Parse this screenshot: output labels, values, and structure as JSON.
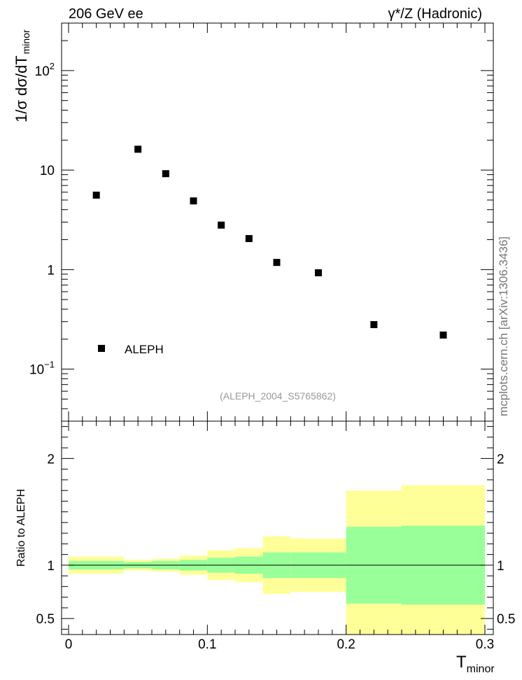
{
  "header": {
    "left": "206 GeV ee",
    "right": "γ*/Z (Hadronic)"
  },
  "side_label": "mcplots.cern.ch [arXiv:1306.3436]",
  "watermark": "(ALEPH_2004_S5765862)",
  "main_ylabel": {
    "prefix": "1/σ  dσ/dT",
    "sub": "minor"
  },
  "ratio_ylabel": "Ratio to ALEPH",
  "xlabel": {
    "main": "T",
    "sub": "minor"
  },
  "legend": {
    "label": "ALEPH"
  },
  "colors": {
    "band_outer": "#ffff99",
    "band_inner": "#99ff99",
    "marker": "#000000"
  },
  "main_yticks": [
    {
      "value": 0.1,
      "base": "10",
      "exp": "−1"
    },
    {
      "value": 1,
      "base": "1",
      "exp": ""
    },
    {
      "value": 10,
      "base": "10",
      "exp": ""
    },
    {
      "value": 100,
      "base": "10",
      "exp": "2"
    }
  ],
  "ratio_yticks": [
    "0.5",
    "1",
    "2"
  ],
  "xticks": [
    "0",
    "0.1",
    "0.2",
    "0.3"
  ],
  "chart_data": [
    {
      "type": "scatter",
      "title": "",
      "xlabel": "",
      "ylabel": "1/σ dσ/dT_minor",
      "yscale": "log",
      "xlim": [
        0,
        0.3
      ],
      "ylim": [
        0.03,
        300
      ],
      "series": [
        {
          "name": "ALEPH",
          "x": [
            0.02,
            0.05,
            0.07,
            0.09,
            0.11,
            0.13,
            0.15,
            0.18,
            0.22,
            0.27
          ],
          "y": [
            5.6,
            16.2,
            9.2,
            4.9,
            2.8,
            2.05,
            1.18,
            0.93,
            0.28,
            0.22
          ]
        }
      ]
    },
    {
      "type": "area",
      "title": "",
      "xlabel": "T_minor",
      "ylabel": "Ratio to ALEPH",
      "xlim": [
        0,
        0.3
      ],
      "ylim": [
        0.35,
        2.35
      ],
      "reference_line": 1,
      "bins": [
        {
          "lo": 0.0,
          "hi": 0.04,
          "inner": [
            0.96,
            1.04
          ],
          "outer": [
            0.92,
            1.08
          ]
        },
        {
          "lo": 0.04,
          "hi": 0.06,
          "inner": [
            0.97,
            1.03
          ],
          "outer": [
            0.95,
            1.05
          ]
        },
        {
          "lo": 0.06,
          "hi": 0.08,
          "inner": [
            0.96,
            1.04
          ],
          "outer": [
            0.94,
            1.06
          ]
        },
        {
          "lo": 0.08,
          "hi": 0.1,
          "inner": [
            0.95,
            1.05
          ],
          "outer": [
            0.91,
            1.09
          ]
        },
        {
          "lo": 0.1,
          "hi": 0.12,
          "inner": [
            0.93,
            1.07
          ],
          "outer": [
            0.86,
            1.14
          ]
        },
        {
          "lo": 0.12,
          "hi": 0.14,
          "inner": [
            0.92,
            1.08
          ],
          "outer": [
            0.84,
            1.16
          ]
        },
        {
          "lo": 0.14,
          "hi": 0.16,
          "inner": [
            0.88,
            1.12
          ],
          "outer": [
            0.73,
            1.27
          ]
        },
        {
          "lo": 0.16,
          "hi": 0.2,
          "inner": [
            0.88,
            1.12
          ],
          "outer": [
            0.75,
            1.25
          ]
        },
        {
          "lo": 0.2,
          "hi": 0.24,
          "inner": [
            0.64,
            1.36
          ],
          "outer": [
            0.3,
            1.7
          ]
        },
        {
          "lo": 0.24,
          "hi": 0.3,
          "inner": [
            0.63,
            1.37
          ],
          "outer": [
            0.25,
            1.75
          ]
        }
      ]
    }
  ]
}
